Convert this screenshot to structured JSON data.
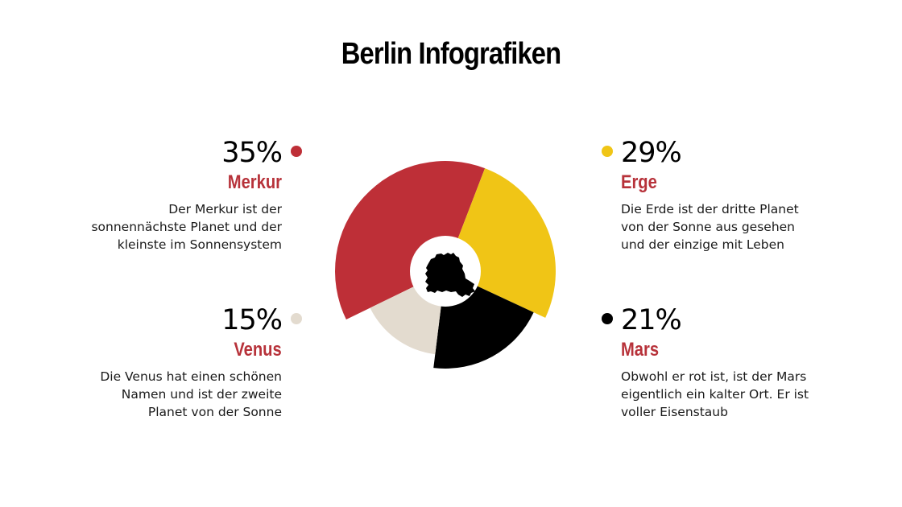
{
  "title": "Berlin Infografiken",
  "colors": {
    "accent_text": "#b7323a",
    "merkur": "#be2f37",
    "erde": "#f0c516",
    "venus": "#e3dbcf",
    "mars": "#000000",
    "center_icon": "#000000"
  },
  "center_icon": "berlin-map-silhouette",
  "items": [
    {
      "percent": "35%",
      "name": "Merkur",
      "description": "Der Merkur ist der\nsonnennächste Planet und der\nkleinste im Sonnensystem"
    },
    {
      "percent": "29%",
      "name": "Erge",
      "description": "Die Erde ist der dritte Planet\nvon der Sonne aus gesehen\nund der einzige mit Leben"
    },
    {
      "percent": "15%",
      "name": "Venus",
      "description": "Die Venus hat einen schönen\nNamen und ist der zweite\nPlanet von der Sonne"
    },
    {
      "percent": "21%",
      "name": "Mars",
      "description": "Obwohl er rot ist, ist der Mars\neigentlich ein kalter Ort. Er ist\nvoller Eisenstaub"
    }
  ],
  "chart_data": {
    "type": "pie",
    "subtype": "variable-radius donut (nightingale-style)",
    "title": "Berlin Infografiken",
    "categories": [
      "Merkur",
      "Erge",
      "Mars",
      "Venus"
    ],
    "values": [
      35,
      29,
      21,
      15
    ],
    "unit": "%",
    "colors": [
      "#be2f37",
      "#f0c516",
      "#000000",
      "#e3dbcf"
    ],
    "legend": "four text blocks around chart with colored dots",
    "center": "white circle with Berlin map silhouette"
  }
}
